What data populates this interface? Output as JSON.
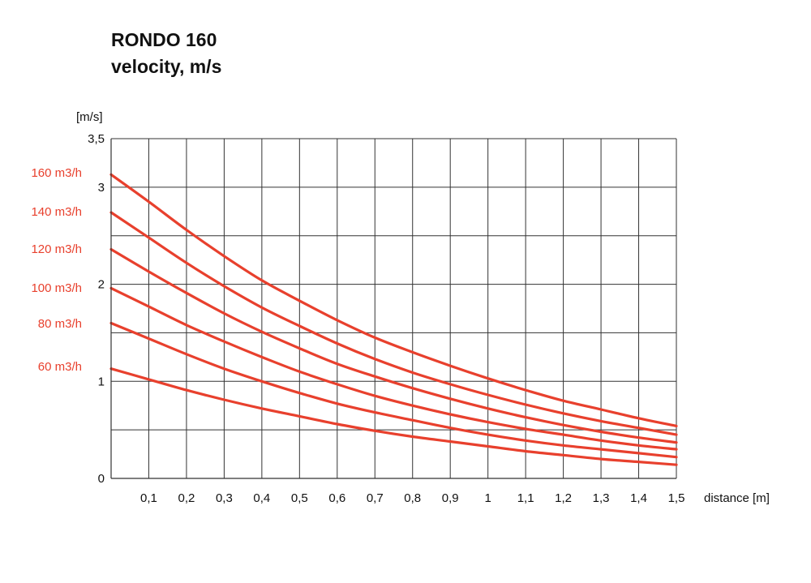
{
  "chart_data": {
    "type": "line",
    "title": "RONDO 160",
    "subtitle": "velocity, m/s",
    "ylabel": "[m/s]",
    "xlabel": "distance [m]",
    "xlim": [
      0,
      1.5
    ],
    "ylim": [
      0,
      3.5
    ],
    "grid": true,
    "x_ticks": [
      0.1,
      0.2,
      0.3,
      0.4,
      0.5,
      0.6,
      0.7,
      0.8,
      0.9,
      1.0,
      1.1,
      1.2,
      1.3,
      1.4,
      1.5
    ],
    "x_tick_labels": [
      "0,1",
      "0,2",
      "0,3",
      "0,4",
      "0,5",
      "0,6",
      "0,7",
      "0,8",
      "0,9",
      "1",
      "1,1",
      "1,2",
      "1,3",
      "1,4",
      "1,5"
    ],
    "y_grid": [
      0.5,
      1,
      1.5,
      2,
      2.5,
      3,
      3.5
    ],
    "y_ticks": [
      0,
      1,
      2,
      3,
      3.5
    ],
    "y_tick_labels": [
      "0",
      "1",
      "2",
      "3",
      "3,5"
    ],
    "x": [
      0,
      0.1,
      0.2,
      0.3,
      0.4,
      0.5,
      0.6,
      0.7,
      0.8,
      0.9,
      1.0,
      1.1,
      1.2,
      1.3,
      1.4,
      1.5
    ],
    "series": [
      {
        "name": "160 m3/h",
        "values": [
          3.13,
          2.85,
          2.56,
          2.29,
          2.04,
          1.83,
          1.63,
          1.45,
          1.3,
          1.16,
          1.03,
          0.91,
          0.8,
          0.71,
          0.62,
          0.54
        ]
      },
      {
        "name": "140 m3/h",
        "values": [
          2.74,
          2.48,
          2.22,
          1.98,
          1.76,
          1.57,
          1.39,
          1.23,
          1.09,
          0.97,
          0.86,
          0.76,
          0.67,
          0.59,
          0.52,
          0.45
        ]
      },
      {
        "name": "120 m3/h",
        "values": [
          2.36,
          2.13,
          1.91,
          1.7,
          1.51,
          1.34,
          1.18,
          1.05,
          0.93,
          0.82,
          0.72,
          0.63,
          0.55,
          0.48,
          0.42,
          0.37
        ]
      },
      {
        "name": "100 m3/h",
        "values": [
          1.96,
          1.77,
          1.58,
          1.41,
          1.25,
          1.1,
          0.97,
          0.85,
          0.75,
          0.66,
          0.58,
          0.51,
          0.45,
          0.39,
          0.34,
          0.3
        ]
      },
      {
        "name": "80 m3/h",
        "values": [
          1.6,
          1.44,
          1.28,
          1.13,
          1.0,
          0.88,
          0.77,
          0.68,
          0.6,
          0.52,
          0.45,
          0.39,
          0.34,
          0.3,
          0.26,
          0.22
        ]
      },
      {
        "name": "60 m3/h",
        "values": [
          1.13,
          1.02,
          0.91,
          0.81,
          0.72,
          0.64,
          0.56,
          0.49,
          0.43,
          0.38,
          0.33,
          0.28,
          0.24,
          0.2,
          0.17,
          0.14
        ]
      }
    ],
    "colors": {
      "series": "#e8402d",
      "grid": "#333333",
      "text": "#111111"
    }
  }
}
